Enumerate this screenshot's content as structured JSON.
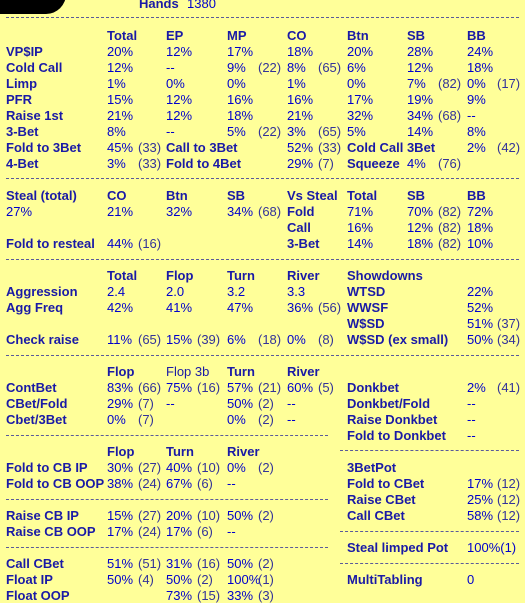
{
  "header": {
    "label": "Hands",
    "value": "1380"
  },
  "s1": {
    "cols": [
      "Total",
      "EP",
      "MP",
      "CO",
      "Btn",
      "SB",
      "BB"
    ],
    "rows": [
      {
        "label": "VP$IP",
        "cells": [
          "20%",
          "12%",
          "17%",
          "18%",
          "20%",
          "28%",
          "24%"
        ]
      },
      {
        "label": "Cold Call",
        "cells": [
          "12%",
          "--",
          "9%",
          "(22)",
          "8%",
          "(65)",
          "6%",
          "12%",
          "18%"
        ]
      },
      {
        "label": "Limp",
        "cells": [
          "1%",
          "0%",
          "0%",
          "1%",
          "0%",
          "7%",
          "(82)",
          "0%",
          "(17)"
        ]
      },
      {
        "label": "PFR",
        "cells": [
          "15%",
          "12%",
          "16%",
          "16%",
          "17%",
          "19%",
          "9%"
        ]
      },
      {
        "label": "Raise 1st",
        "cells": [
          "21%",
          "12%",
          "18%",
          "21%",
          "32%",
          "34%",
          "(68)",
          "--"
        ]
      },
      {
        "label": "3-Bet",
        "cells": [
          "8%",
          "--",
          "5%",
          "(22)",
          "3%",
          "(65)",
          "5%",
          "14%",
          "8%"
        ]
      }
    ],
    "fold3": {
      "label": "Fold to 3Bet",
      "v": "45%",
      "n": "(33)",
      "cc_label": "Call to 3Bet",
      "cc_v": "52%",
      "cc_n": "(33)",
      "cc3_label": "Cold Call 3Bet",
      "cc3_v": "2%",
      "cc3_n": "(42)"
    },
    "bet4": {
      "label": "4-Bet",
      "v": "3%",
      "n": "(33)",
      "f4_label": "Fold to 4Bet",
      "f4_v": "29%",
      "f4_n": "(7)",
      "sq_label": "Squeeze",
      "sq_v": "4%",
      "sq_n": "(76)"
    }
  },
  "s2": {
    "head": [
      "Steal (total)",
      "CO",
      "Btn",
      "SB",
      "Vs Steal",
      "Total",
      "SB",
      "BB"
    ],
    "steal": [
      "27%",
      "21%",
      "32%",
      "34%",
      "(68)"
    ],
    "vs": [
      {
        "label": "Fold",
        "total": "71%",
        "sb": "70%",
        "sbn": "(82)",
        "bb": "72%"
      },
      {
        "label": "Call",
        "total": "16%",
        "sb": "12%",
        "sbn": "(82)",
        "bb": "18%"
      },
      {
        "label": "3-Bet",
        "total": "14%",
        "sb": "18%",
        "sbn": "(82)",
        "bb": "10%"
      }
    ],
    "resteal": {
      "label": "Fold to resteal",
      "v": "44%",
      "n": "(16)"
    }
  },
  "s3": {
    "cols": [
      "Total",
      "Flop",
      "Turn",
      "River"
    ],
    "aggression": {
      "label": "Aggression",
      "cells": [
        "2.4",
        "2.0",
        "3.2",
        "3.3"
      ]
    },
    "aggfreq": {
      "label": "Agg Freq",
      "cells": [
        "42%",
        "41%",
        "47%",
        "36%",
        "(56)"
      ]
    },
    "checkraise": {
      "label": "Check raise",
      "cells": [
        "11%",
        "(65)",
        "15%",
        "(39)",
        "6%",
        "(18)",
        "0%",
        "(8)"
      ]
    },
    "showdowns": {
      "title": "Showdowns",
      "rows": [
        {
          "label": "WTSD",
          "v": "22%",
          "n": ""
        },
        {
          "label": "WWSF",
          "v": "52%",
          "n": ""
        },
        {
          "label": "W$SD",
          "v": "51%",
          "n": "(37)"
        },
        {
          "label": "W$SD (ex small)",
          "v": "50%",
          "n": "(34)"
        }
      ]
    }
  },
  "s4": {
    "cols": [
      "Flop",
      "Flop 3b",
      "Turn",
      "River"
    ],
    "contbet": {
      "label": "ContBet",
      "cells": [
        "83%",
        "(66)",
        "75%",
        "(16)",
        "57%",
        "(21)",
        "60%",
        "(5)"
      ]
    },
    "cbetfold": {
      "label": "CBet/Fold",
      "cells": [
        "29%",
        "(7)",
        "--",
        "50%",
        "(2)",
        "--"
      ]
    },
    "cbet3bet": {
      "label": "Cbet/3Bet",
      "cells": [
        "0%",
        "(7)",
        "0%",
        "(2)",
        "--"
      ]
    },
    "donk": [
      {
        "label": "Donkbet",
        "v": "2%",
        "n": "(41)"
      },
      {
        "label": "Donkbet/Fold",
        "v": "--",
        "n": ""
      },
      {
        "label": "Raise Donkbet",
        "v": "--",
        "n": ""
      },
      {
        "label": "Fold to Donkbet",
        "v": "--",
        "n": ""
      }
    ]
  },
  "s5": {
    "cols": [
      "Flop",
      "Turn",
      "River"
    ],
    "rows": [
      {
        "label": "Fold to CB IP",
        "cells": [
          "30%",
          "(27)",
          "40%",
          "(10)",
          "0%",
          "(2)"
        ]
      },
      {
        "label": "Fold to CB OOP",
        "cells": [
          "38%",
          "(24)",
          "67%",
          "(6)",
          "--"
        ]
      },
      {
        "label": "Raise CB IP",
        "cells": [
          "15%",
          "(27)",
          "20%",
          "(10)",
          "50%",
          "(2)"
        ]
      },
      {
        "label": "Raise CB OOP",
        "cells": [
          "17%",
          "(24)",
          "17%",
          "(6)",
          "--"
        ]
      },
      {
        "label": "Call CBet",
        "cells": [
          "51%",
          "(51)",
          "31%",
          "(16)",
          "50%",
          "(2)"
        ]
      },
      {
        "label": "Float IP",
        "cells": [
          "50%",
          "(4)",
          "50%",
          "(2)",
          "100%",
          "(1)"
        ]
      },
      {
        "label": "Float OOP",
        "cells": [
          "73%",
          "(15)",
          "33%",
          "(3)"
        ]
      }
    ],
    "bet3pot": {
      "title": "3BetPot",
      "rows": [
        {
          "label": "Fold to CBet",
          "v": "17%",
          "n": "(12)"
        },
        {
          "label": "Raise CBet",
          "v": "25%",
          "n": "(12)"
        },
        {
          "label": "Call CBet",
          "v": "58%",
          "n": "(12)"
        }
      ]
    },
    "steal_limped": {
      "label": "Steal limped Pot",
      "v": "100%(1)"
    },
    "multitabling": {
      "label": "MultiTabling",
      "v": "0"
    }
  }
}
